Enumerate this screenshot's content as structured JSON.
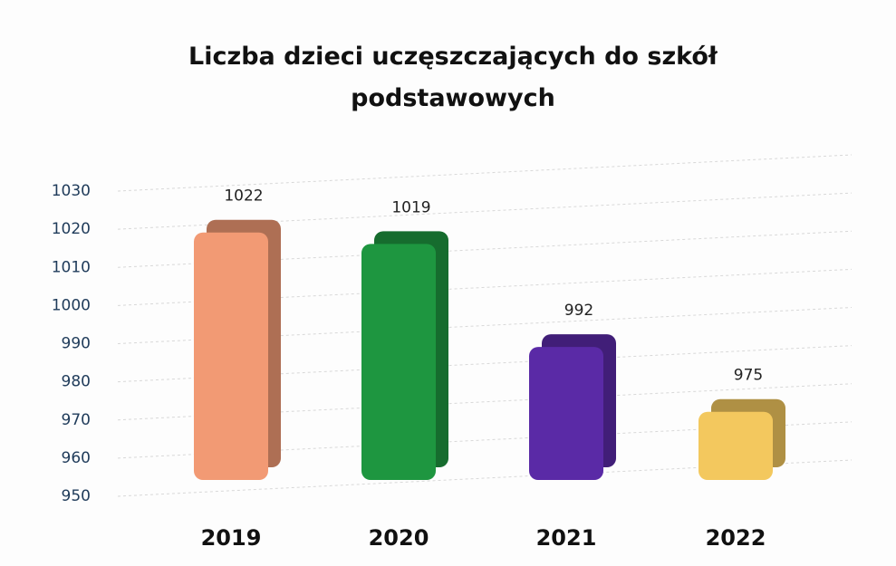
{
  "chart_data": {
    "type": "bar",
    "title": "Liczba dzieci uczęszczających do szkół podstawowych",
    "categories": [
      "2019",
      "2020",
      "2021",
      "2022"
    ],
    "values": [
      1022,
      1019,
      992,
      975
    ],
    "colors": [
      "#f29a74",
      "#1e9640",
      "#5a2aa6",
      "#f3c85e"
    ],
    "ylim": [
      950,
      1030
    ],
    "yticks": [
      950,
      960,
      970,
      980,
      990,
      1000,
      1010,
      1020,
      1030
    ],
    "grid": true
  }
}
